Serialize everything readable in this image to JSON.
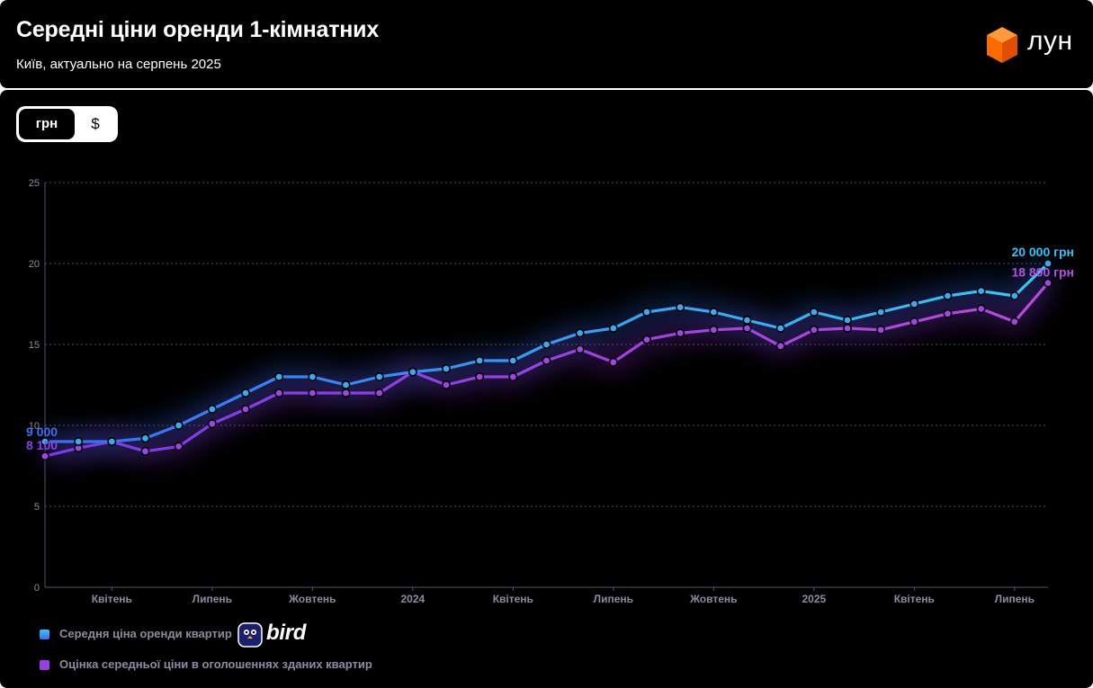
{
  "header": {
    "title": "Середні ціни оренди 1-кімнатних",
    "subtitle": "Київ, актуально на серпень 2025",
    "logo_text": "лун"
  },
  "toggle": {
    "active_label": "грн",
    "inactive_label": "$"
  },
  "colors": {
    "series1": "#3aa9f0",
    "series2": "#a046e0",
    "background": "#000000",
    "accent_logo": "#ff6a00"
  },
  "legend": {
    "item1": "Середня ціна оренди квартир",
    "item2": "Оцінка середньої ціни в оголошеннях зданих квартир",
    "bird_text": "bird"
  },
  "chart_data": {
    "type": "line",
    "y_ticks": [
      "0",
      "5",
      "10",
      "15",
      "20",
      "25"
    ],
    "ylim": [
      0,
      25
    ],
    "x_tick_labels": [
      {
        "index": 2,
        "label": "Квітень"
      },
      {
        "index": 5,
        "label": "Липень"
      },
      {
        "index": 8,
        "label": "Жовтень"
      },
      {
        "index": 11,
        "label": "2024"
      },
      {
        "index": 14,
        "label": "Квітень"
      },
      {
        "index": 17,
        "label": "Липень"
      },
      {
        "index": 20,
        "label": "Жовтень"
      },
      {
        "index": 23,
        "label": "2025"
      },
      {
        "index": 26,
        "label": "Квітень"
      },
      {
        "index": 29,
        "label": "Липень"
      }
    ],
    "grid": true,
    "series": [
      {
        "name": "Середня ціна оренди квартир",
        "values": [
          9.0,
          9.0,
          9.0,
          9.2,
          10.0,
          11.0,
          12.0,
          13.0,
          13.0,
          12.5,
          13.0,
          13.3,
          13.5,
          14.0,
          14.0,
          15.0,
          15.7,
          16.0,
          17.0,
          17.3,
          17.0,
          16.5,
          16.0,
          17.0,
          16.5,
          17.0,
          17.5,
          18.0,
          18.3,
          18.0,
          20.0
        ],
        "start_label": "9 000",
        "end_label": "20 000 грн"
      },
      {
        "name": "Оцінка середньої ціни в оголошеннях зданих квартир",
        "values": [
          8.1,
          8.6,
          9.0,
          8.4,
          8.7,
          10.1,
          11.0,
          12.0,
          12.0,
          12.0,
          12.0,
          13.3,
          12.5,
          13.0,
          13.0,
          14.0,
          14.7,
          13.9,
          15.3,
          15.7,
          15.9,
          16.0,
          14.9,
          15.9,
          16.0,
          15.9,
          16.4,
          16.9,
          17.2,
          16.4,
          18.8
        ],
        "start_label": "8 100",
        "end_label": "18 800 грн"
      }
    ]
  }
}
